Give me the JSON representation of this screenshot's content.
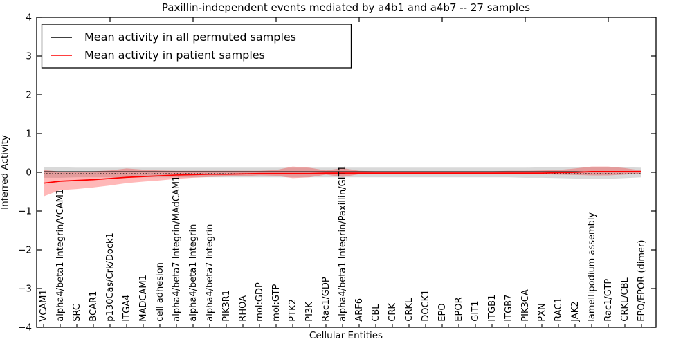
{
  "chart_data": {
    "type": "line",
    "title": "Paxillin-independent events mediated by a4b1 and a4b7 -- 27 samples",
    "xlabel": "Cellular Entities",
    "ylabel": "Inferred Activity",
    "ylim": [
      -4,
      4
    ],
    "yticks": [
      4,
      3,
      2,
      1,
      0,
      -1,
      -2,
      -3,
      -4
    ],
    "ytick_labels": [
      "4",
      "3",
      "2",
      "1",
      "0",
      "−1",
      "−2",
      "−3",
      "−4"
    ],
    "grid": false,
    "legend_position": "upper left",
    "zero_reference_line": {
      "style": "dotted",
      "y": 0,
      "color": "#000000"
    },
    "categories": [
      "VCAM1",
      "alpha4/beta1 Integrin/VCAM1",
      "SRC",
      "BCAR1",
      "p130Cas/Crk/Dock1",
      "ITGA4",
      "MADCAM1",
      "cell adhesion",
      "alpha4/beta7 Integrin/MAdCAM1",
      "alpha4/beta1 Integrin",
      "alpha4/beta7 Integrin",
      "PIK3R1",
      "RHOA",
      "mol:GDP",
      "mol:GTP",
      "PTK2",
      "PI3K",
      "Rac1/GDP",
      "alpha4/beta1 Integrin/Paxillin/GIT1",
      "ARF6",
      "CBL",
      "CRK",
      "CRKL",
      "DOCK1",
      "EPO",
      "EPOR",
      "GIT1",
      "ITGB1",
      "ITGB7",
      "PIK3CA",
      "PXN",
      "RAC1",
      "JAK2",
      "lamellipodium assembly",
      "Rac1/GTP",
      "CRKL/CBL",
      "EPO/EPOR (dimer)"
    ],
    "series": [
      {
        "name": "Mean activity in all permuted samples",
        "color": "#000000",
        "band_color": "#000000",
        "band_opacity": 0.15,
        "values": [
          0,
          0,
          0,
          0,
          0,
          0,
          0,
          0,
          0,
          0,
          0,
          0,
          0,
          0,
          0,
          0,
          0,
          0,
          0,
          0,
          0,
          0,
          0,
          0,
          0,
          0,
          0,
          0,
          0,
          0,
          0,
          0,
          0,
          0,
          0,
          0,
          0
        ],
        "band_low": [
          -0.14,
          -0.14,
          -0.13,
          -0.13,
          -0.13,
          -0.13,
          -0.13,
          -0.13,
          -0.13,
          -0.13,
          -0.13,
          -0.13,
          -0.13,
          -0.13,
          -0.13,
          -0.13,
          -0.13,
          -0.13,
          -0.13,
          -0.13,
          -0.13,
          -0.13,
          -0.13,
          -0.13,
          -0.13,
          -0.13,
          -0.13,
          -0.13,
          -0.13,
          -0.14,
          -0.14,
          -0.15,
          -0.16,
          -0.17,
          -0.17,
          -0.15,
          -0.13
        ],
        "band_high": [
          0.13,
          0.13,
          0.12,
          0.12,
          0.12,
          0.12,
          0.12,
          0.12,
          0.12,
          0.12,
          0.12,
          0.12,
          0.12,
          0.12,
          0.12,
          0.12,
          0.12,
          0.12,
          0.12,
          0.12,
          0.12,
          0.12,
          0.12,
          0.12,
          0.12,
          0.12,
          0.12,
          0.12,
          0.12,
          0.12,
          0.13,
          0.13,
          0.13,
          0.14,
          0.14,
          0.13,
          0.12
        ]
      },
      {
        "name": "Mean activity in patient samples",
        "color": "#ff0000",
        "band_color": "#ff0000",
        "band_opacity": 0.28,
        "values": [
          -0.28,
          -0.23,
          -0.21,
          -0.19,
          -0.16,
          -0.13,
          -0.11,
          -0.09,
          -0.07,
          -0.06,
          -0.05,
          -0.05,
          -0.04,
          -0.03,
          -0.03,
          -0.03,
          -0.03,
          -0.02,
          -0.02,
          -0.02,
          -0.02,
          -0.02,
          -0.02,
          -0.02,
          -0.02,
          -0.02,
          -0.02,
          -0.02,
          -0.02,
          -0.02,
          -0.02,
          -0.01,
          0.0,
          0.02,
          0.02,
          0.02,
          0.02
        ],
        "band_low": [
          -0.62,
          -0.46,
          -0.43,
          -0.39,
          -0.34,
          -0.28,
          -0.24,
          -0.21,
          -0.17,
          -0.14,
          -0.12,
          -0.11,
          -0.1,
          -0.08,
          -0.09,
          -0.15,
          -0.13,
          -0.06,
          -0.12,
          -0.05,
          -0.04,
          -0.04,
          -0.04,
          -0.04,
          -0.04,
          -0.04,
          -0.04,
          -0.04,
          -0.04,
          -0.05,
          -0.05,
          -0.06,
          -0.07,
          -0.08,
          -0.08,
          -0.06,
          -0.03
        ],
        "band_high": [
          0.06,
          0.02,
          0.02,
          0.03,
          0.05,
          0.1,
          0.07,
          0.05,
          0.04,
          0.04,
          0.04,
          0.04,
          0.04,
          0.04,
          0.06,
          0.15,
          0.12,
          0.05,
          0.11,
          0.04,
          0.03,
          0.03,
          0.03,
          0.03,
          0.03,
          0.03,
          0.03,
          0.03,
          0.04,
          0.04,
          0.05,
          0.06,
          0.1,
          0.15,
          0.15,
          0.11,
          0.05
        ]
      }
    ]
  }
}
